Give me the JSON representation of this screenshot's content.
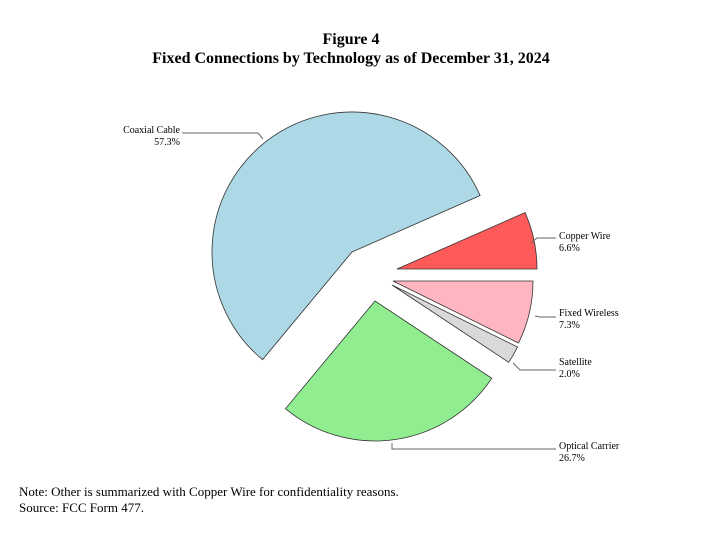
{
  "chart_data": {
    "type": "pie",
    "title": "Figure 4",
    "subtitle": "Fixed Connections by Technology as of December 31, 2024",
    "slices": [
      {
        "label": "Copper Wire",
        "value": 6.6,
        "value_label": "6.6%",
        "color": "#ff5a5a"
      },
      {
        "label": "Coaxial Cable",
        "value": 57.3,
        "value_label": "57.3%",
        "color": "#add8e6"
      },
      {
        "label": "Optical Carrier",
        "value": 26.7,
        "value_label": "26.7%",
        "color": "#90ee90"
      },
      {
        "label": "Satellite",
        "value": 2.0,
        "value_label": "2.0%",
        "color": "#d9d9d9"
      },
      {
        "label": "Fixed Wireless",
        "value": 7.3,
        "value_label": "7.3%",
        "color": "#ffb6c1"
      }
    ],
    "exploded": true
  },
  "notes": [
    "Note: Other is summarized with Copper Wire for confidentiality reasons.",
    "Source: FCC Form 477."
  ]
}
